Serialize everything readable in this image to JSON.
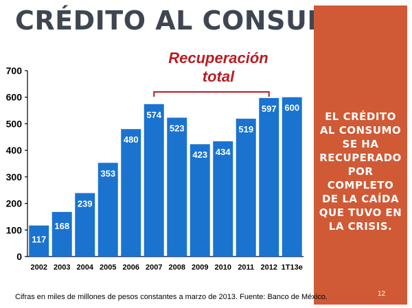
{
  "slide": {
    "title": "CRÉDITO AL CONSUMO",
    "side_lines": [
      "EL CRÉDITO",
      "AL CONSUMO",
      "SE HA",
      "RECUPERADO",
      "POR",
      "COMPLETO",
      "DE LA CAÍDA",
      "QUE TUVO EN",
      "LA CRISIS."
    ],
    "footnote": "Cifras en miles de millones de pesos constantes a marzo de 2013. Fuente: Banco de México.",
    "page_number": "12"
  },
  "colors": {
    "bar": "#1a73cf",
    "panel": "#d05a35",
    "annotation": "#b81d22",
    "title": "#3f4652"
  },
  "chart_data": {
    "type": "bar",
    "categories": [
      "2002",
      "2003",
      "2004",
      "2005",
      "2006",
      "2007",
      "2008",
      "2009",
      "2010",
      "2011",
      "2012",
      "1T13e"
    ],
    "values": [
      117,
      168,
      239,
      353,
      480,
      574,
      523,
      423,
      434,
      519,
      597,
      600
    ],
    "data_labels": [
      "117",
      "168",
      "239",
      "353",
      "480",
      "574",
      "523",
      "423",
      "434",
      "519",
      "597",
      "600"
    ],
    "ylim": [
      0,
      700
    ],
    "yticks": [
      0,
      100,
      200,
      300,
      400,
      500,
      600,
      700
    ],
    "annotation": {
      "lines": [
        "Recuperación",
        "total"
      ],
      "from_category": "2007",
      "to_category": "2012"
    },
    "grid": false,
    "legend": "none"
  }
}
